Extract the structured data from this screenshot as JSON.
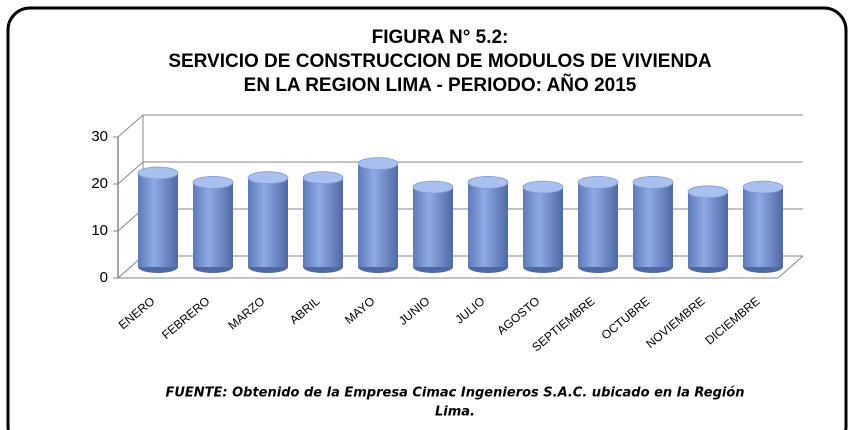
{
  "chart_data": {
    "type": "bar3d",
    "title": [
      "FIGURA N° 5.2:",
      "SERVICIO DE CONSTRUCCION DE MODULOS DE VIVIENDA",
      "EN LA REGION LIMA - PERIODO: AÑO 2015"
    ],
    "categories": [
      "ENERO",
      "FEBRERO",
      "MARZO",
      "ABRIL",
      "MAYO",
      "JUNIO",
      "JULIO",
      "AGOSTO",
      "SEPTIEMBRE",
      "OCTUBRE",
      "NOVIEMBRE",
      "DICIEMBRE"
    ],
    "values": [
      20,
      18,
      19,
      19,
      22,
      17,
      18,
      17,
      18,
      18,
      16,
      17
    ],
    "color": "#8eaae6",
    "ylim": [
      0,
      30
    ],
    "yticks": [
      0,
      10,
      20,
      30
    ],
    "grid": true,
    "source": [
      "FUENTE: Obtenido de la Empresa Cimac Ingenieros  S.A.C. ubicado en la Región",
      "Lima."
    ]
  }
}
